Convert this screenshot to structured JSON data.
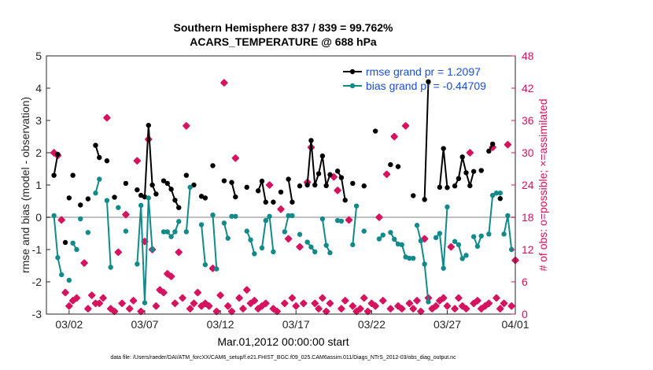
{
  "title_line1": "Southern Hemisphere 837 / 839 = 99.762%",
  "title_line2": "ACARS_TEMPERATURE @ 688 hPa",
  "xlabel": "Mar.01,2012 00:00:00 start",
  "footnote": "data file: /Users/raeder/DAI/ATM_forcXX/CAM6_setup/f.e21.FHIST_BGC.f09_025.CAM6assim.011/Diags_NTrS_2012-03/obs_diag_output.nc",
  "colors": {
    "rmse": "#000000",
    "bias": "#138a8a",
    "obs": "#d6135e",
    "legend_text": "#1a4fd6",
    "zero_line": "#c0c0c0"
  },
  "chart_data": {
    "type": "line",
    "ylabel_left": "rmse and bias (model - observation)",
    "ylabel_right": "# of obs: o=possible; ×=assimilated",
    "xlim": [
      0.5,
      31.5
    ],
    "ylim_left": [
      -3,
      5
    ],
    "ylim_right": [
      0,
      48
    ],
    "xtick_values": [
      2,
      7,
      12,
      17,
      22,
      27,
      32
    ],
    "xtick_labels": [
      "03/02",
      "03/07",
      "03/12",
      "03/17",
      "03/22",
      "03/27",
      "04/01"
    ],
    "yticks_left": [
      -3,
      -2,
      -1,
      0,
      1,
      2,
      3,
      4,
      5
    ],
    "yticks_right": [
      0,
      6,
      12,
      18,
      24,
      30,
      36,
      42,
      48
    ],
    "legend": {
      "position": "top-right",
      "entries": [
        "rmse grand pr = 1.2097",
        "bias grand pr = -0.44709"
      ]
    },
    "series": [
      {
        "name": "rmse grand pr = 1.2097",
        "segments": [
          [
            [
              1.0,
              1.3
            ],
            [
              1.25,
              1.95
            ]
          ],
          [
            [
              1.75,
              -0.78
            ]
          ],
          [
            [
              2.0,
              0.6
            ]
          ],
          [
            [
              2.25,
              1.3
            ]
          ],
          [
            [
              2.75,
              0.38
            ]
          ],
          [
            [
              3.25,
              0.57
            ]
          ],
          [
            [
              3.75,
              2.23
            ],
            [
              4.0,
              1.85
            ]
          ],
          [
            [
              4.5,
              1.75
            ]
          ],
          [
            [
              5.0,
              0.62
            ]
          ],
          [
            [
              5.75,
              1.05
            ]
          ],
          [
            [
              6.5,
              0.85
            ]
          ],
          [
            [
              6.75,
              0.68
            ],
            [
              7.0,
              0.63
            ],
            [
              7.25,
              2.85
            ],
            [
              7.5,
              1.0
            ],
            [
              7.75,
              0.72
            ]
          ],
          [
            [
              8.25,
              1.13
            ],
            [
              8.5,
              1.05
            ],
            [
              8.75,
              0.87
            ],
            [
              9.0,
              0.53
            ],
            [
              9.25,
              0.3
            ]
          ],
          [
            [
              9.75,
              1.3
            ]
          ],
          [
            [
              10.25,
              1.0
            ]
          ],
          [
            [
              10.75,
              0.65
            ],
            [
              11.0,
              0.6
            ]
          ],
          [
            [
              11.5,
              1.6
            ]
          ],
          [
            [
              12.25,
              1.13
            ]
          ],
          [
            [
              12.75,
              1.08
            ],
            [
              13.0,
              0.63
            ]
          ],
          [
            [
              13.75,
              0.93
            ]
          ],
          [
            [
              14.5,
              0.82
            ],
            [
              14.75,
              1.12
            ],
            [
              15.0,
              0.47
            ]
          ],
          [
            [
              15.5,
              0.47
            ]
          ],
          [
            [
              16.0,
              0.78
            ]
          ],
          [
            [
              16.5,
              1.18
            ],
            [
              16.75,
              0.47
            ]
          ],
          [
            [
              17.25,
              0.97
            ]
          ],
          [
            [
              17.75,
              1.0
            ],
            [
              18.0,
              2.38
            ],
            [
              18.25,
              1.0
            ],
            [
              18.5,
              1.35
            ],
            [
              18.75,
              1.9
            ],
            [
              19.0,
              0.98
            ],
            [
              19.25,
              1.32
            ]
          ],
          [
            [
              19.75,
              1.43
            ],
            [
              20.0,
              1.23
            ],
            [
              20.25,
              0.53
            ]
          ],
          [
            [
              20.75,
              1.05
            ]
          ],
          [
            [
              21.5,
              0.97
            ]
          ],
          [
            [
              22.25,
              2.67
            ]
          ],
          [
            [
              23.25,
              1.63
            ]
          ],
          [
            [
              23.75,
              1.57
            ]
          ],
          [
            [
              24.75,
              0.67
            ]
          ],
          [
            [
              25.5,
              0.55
            ],
            [
              25.75,
              4.2
            ]
          ],
          [
            [
              26.5,
              0.93
            ],
            [
              26.75,
              2.13
            ],
            [
              27.0,
              0.92
            ]
          ],
          [
            [
              27.5,
              0.97
            ],
            [
              27.75,
              1.2
            ],
            [
              28.0,
              1.87
            ],
            [
              28.25,
              1.38
            ],
            [
              28.5,
              0.98
            ],
            [
              28.75,
              1.42
            ]
          ],
          [
            [
              29.25,
              1.45
            ]
          ],
          [
            [
              29.75,
              2.05
            ],
            [
              30.0,
              2.27
            ]
          ],
          [
            [
              30.5,
              0.58
            ]
          ]
        ]
      },
      {
        "name": "bias grand pr = -0.44709",
        "segments": [
          [
            [
              1.0,
              0.05
            ],
            [
              1.25,
              -1.25
            ],
            [
              1.5,
              -1.78
            ]
          ],
          [
            [
              2.0,
              -1.95
            ]
          ],
          [
            [
              2.25,
              -0.8
            ],
            [
              2.5,
              -1.0
            ]
          ],
          [
            [
              2.75,
              -0.05
            ]
          ],
          [
            [
              3.25,
              -0.47
            ]
          ],
          [
            [
              3.75,
              0.75
            ],
            [
              4.0,
              1.18
            ]
          ],
          [
            [
              4.5,
              0.52
            ],
            [
              4.75,
              -1.55
            ]
          ],
          [
            [
              5.25,
              0.3
            ]
          ],
          [
            [
              5.75,
              -0.43
            ]
          ],
          [
            [
              6.5,
              -1.45
            ],
            [
              6.75,
              0.37
            ],
            [
              7.0,
              -2.65
            ],
            [
              7.25,
              0.6
            ],
            [
              7.5,
              -1.0
            ]
          ],
          [
            [
              8.25,
              -0.45
            ],
            [
              8.5,
              -0.45
            ],
            [
              8.75,
              -0.6
            ],
            [
              9.0,
              -0.45
            ],
            [
              9.25,
              -0.13
            ]
          ],
          [
            [
              9.75,
              -0.45
            ],
            [
              10.0,
              0.93
            ]
          ],
          [
            [
              10.75,
              -0.23
            ],
            [
              11.0,
              -1.47
            ]
          ],
          [
            [
              11.5,
              0.07
            ],
            [
              11.75,
              -1.6
            ]
          ],
          [
            [
              12.25,
              -0.18
            ],
            [
              12.5,
              -0.65
            ]
          ],
          [
            [
              12.75,
              0.03
            ],
            [
              13.0,
              0.03
            ]
          ],
          [
            [
              13.75,
              -0.43
            ],
            [
              14.0,
              -0.7
            ],
            [
              14.25,
              -1.13
            ]
          ],
          [
            [
              14.75,
              -0.95
            ],
            [
              15.0,
              -0.1
            ],
            [
              15.25,
              0.03
            ],
            [
              15.5,
              -1.07
            ]
          ],
          [
            [
              16.25,
              -0.45
            ],
            [
              16.5,
              0.05
            ],
            [
              16.75,
              0.05
            ]
          ],
          [
            [
              17.25,
              -0.53
            ]
          ],
          [
            [
              17.75,
              -0.77
            ],
            [
              18.0,
              -0.92
            ],
            [
              18.25,
              -1.07
            ]
          ],
          [
            [
              18.75,
              -0.05
            ],
            [
              19.0,
              -0.87
            ],
            [
              19.25,
              -1.1
            ]
          ],
          [
            [
              19.75,
              -0.1
            ],
            [
              20.0,
              -0.12
            ]
          ],
          [
            [
              20.75,
              -0.85
            ],
            [
              21.0,
              0.35
            ]
          ],
          [
            [
              21.5,
              -0.43
            ]
          ],
          [
            [
              22.5,
              -0.67
            ],
            [
              22.75,
              -0.55
            ]
          ],
          [
            [
              23.25,
              -0.47
            ],
            [
              23.5,
              -0.68
            ],
            [
              23.75,
              -0.83
            ],
            [
              24.0,
              -0.85
            ],
            [
              24.25,
              -1.23
            ],
            [
              24.5,
              -1.27
            ],
            [
              24.75,
              -1.27
            ]
          ],
          [
            [
              25.0,
              -0.25
            ],
            [
              25.25,
              -0.73
            ],
            [
              25.5,
              -1.45
            ],
            [
              25.75,
              -2.62
            ]
          ],
          [
            [
              26.25,
              -0.63
            ],
            [
              26.5,
              -0.5
            ],
            [
              26.75,
              -1.58
            ],
            [
              27.0,
              0.32
            ]
          ],
          [
            [
              27.5,
              -0.75
            ],
            [
              27.75,
              -0.85
            ],
            [
              28.0,
              -1.28
            ],
            [
              28.25,
              -1.18
            ]
          ],
          [
            [
              28.75,
              -0.6
            ],
            [
              29.0,
              -0.9
            ],
            [
              29.25,
              -0.58
            ]
          ],
          [
            [
              29.75,
              -0.52
            ],
            [
              30.0,
              0.68
            ],
            [
              30.25,
              0.75
            ],
            [
              30.5,
              0.75
            ]
          ],
          [
            [
              30.75,
              -0.52
            ],
            [
              31.0,
              0.05
            ],
            [
              31.25,
              -1.0
            ]
          ]
        ]
      }
    ],
    "obs_assimilated_right": [
      [
        1.0,
        30
      ],
      [
        1.25,
        29.5
      ],
      [
        1.5,
        17.5
      ],
      [
        1.75,
        4.0
      ],
      [
        2.0,
        1.5
      ],
      [
        2.25,
        2.5
      ],
      [
        2.5,
        3.0
      ],
      [
        3.0,
        9.5
      ],
      [
        3.25,
        1.0
      ],
      [
        3.5,
        3.5
      ],
      [
        3.75,
        2.0
      ],
      [
        4.0,
        2.0
      ],
      [
        4.25,
        3.0
      ],
      [
        4.5,
        36.5
      ],
      [
        4.75,
        1.0
      ],
      [
        5.0,
        0.5
      ],
      [
        5.25,
        11.5
      ],
      [
        5.5,
        2.0
      ],
      [
        5.75,
        18.5
      ],
      [
        6.0,
        1.0
      ],
      [
        6.25,
        2.5
      ],
      [
        6.5,
        28.5
      ],
      [
        6.75,
        0.5
      ],
      [
        7.0,
        13.5
      ],
      [
        7.25,
        32.5
      ],
      [
        7.5,
        12.0
      ],
      [
        7.75,
        1.5
      ],
      [
        8.0,
        4.5
      ],
      [
        8.25,
        4.0
      ],
      [
        8.5,
        7.5
      ],
      [
        8.75,
        7.0
      ],
      [
        9.0,
        2.0
      ],
      [
        9.25,
        11.5
      ],
      [
        9.5,
        3.0
      ],
      [
        9.75,
        35.0
      ],
      [
        10.0,
        1.0
      ],
      [
        10.25,
        2.0
      ],
      [
        10.5,
        4.0
      ],
      [
        10.75,
        1.5
      ],
      [
        11.0,
        2.0
      ],
      [
        11.25,
        1.5
      ],
      [
        11.5,
        8.5
      ],
      [
        11.75,
        0.5
      ],
      [
        12.0,
        3.5
      ],
      [
        12.25,
        43.0
      ],
      [
        12.5,
        1.5
      ],
      [
        12.75,
        0.5
      ],
      [
        13.0,
        29.0
      ],
      [
        13.25,
        3.0
      ],
      [
        13.5,
        1.0
      ],
      [
        13.75,
        4.5
      ],
      [
        14.0,
        2.0
      ],
      [
        14.25,
        2.5
      ],
      [
        14.5,
        1.0
      ],
      [
        14.75,
        1.5
      ],
      [
        15.0,
        2.0
      ],
      [
        15.25,
        24.0
      ],
      [
        15.5,
        1.0
      ],
      [
        15.75,
        0.5
      ],
      [
        16.0,
        19.5
      ],
      [
        16.25,
        2.0
      ],
      [
        16.5,
        14.0
      ],
      [
        16.75,
        3.0
      ],
      [
        17.0,
        1.5
      ],
      [
        17.25,
        12.5
      ],
      [
        17.5,
        2.0
      ],
      [
        17.75,
        24.5
      ],
      [
        18.0,
        31.0
      ],
      [
        18.25,
        2.0
      ],
      [
        18.5,
        1.0
      ],
      [
        18.75,
        3.0
      ],
      [
        19.0,
        0.5
      ],
      [
        19.25,
        2.0
      ],
      [
        19.5,
        25.5
      ],
      [
        19.75,
        23.0
      ],
      [
        20.0,
        1.0
      ],
      [
        20.25,
        2.5
      ],
      [
        20.5,
        17.5
      ],
      [
        20.75,
        1.5
      ],
      [
        21.0,
        0.5
      ],
      [
        21.25,
        1.0
      ],
      [
        21.5,
        3.0
      ],
      [
        21.75,
        0.5
      ],
      [
        22.0,
        2.0
      ],
      [
        22.25,
        1.5
      ],
      [
        22.5,
        18.0
      ],
      [
        22.75,
        2.5
      ],
      [
        23.0,
        26.0
      ],
      [
        23.25,
        1.0
      ],
      [
        23.5,
        33.0
      ],
      [
        23.75,
        1.5
      ],
      [
        24.0,
        1.0
      ],
      [
        24.25,
        35.0
      ],
      [
        24.5,
        2.0
      ],
      [
        24.75,
        1.0
      ],
      [
        25.0,
        2.5
      ],
      [
        25.25,
        0.5
      ],
      [
        25.5,
        14.0
      ],
      [
        25.75,
        3.0
      ],
      [
        26.0,
        1.0
      ],
      [
        26.25,
        1.5
      ],
      [
        26.5,
        2.5
      ],
      [
        26.75,
        3.0
      ],
      [
        27.0,
        1.5
      ],
      [
        27.25,
        12.5
      ],
      [
        27.5,
        1.0
      ],
      [
        27.75,
        3.0
      ],
      [
        28.0,
        1.5
      ],
      [
        28.25,
        1.0
      ],
      [
        28.5,
        30.0
      ],
      [
        28.75,
        2.0
      ],
      [
        29.0,
        2.5
      ],
      [
        29.25,
        1.0
      ],
      [
        29.5,
        1.5
      ],
      [
        29.75,
        2.0
      ],
      [
        30.0,
        31.0
      ],
      [
        30.25,
        3.0
      ],
      [
        30.5,
        1.0
      ],
      [
        30.75,
        2.0
      ],
      [
        31.0,
        31.5
      ],
      [
        31.25,
        1.5
      ],
      [
        31.5,
        10.0
      ]
    ]
  }
}
